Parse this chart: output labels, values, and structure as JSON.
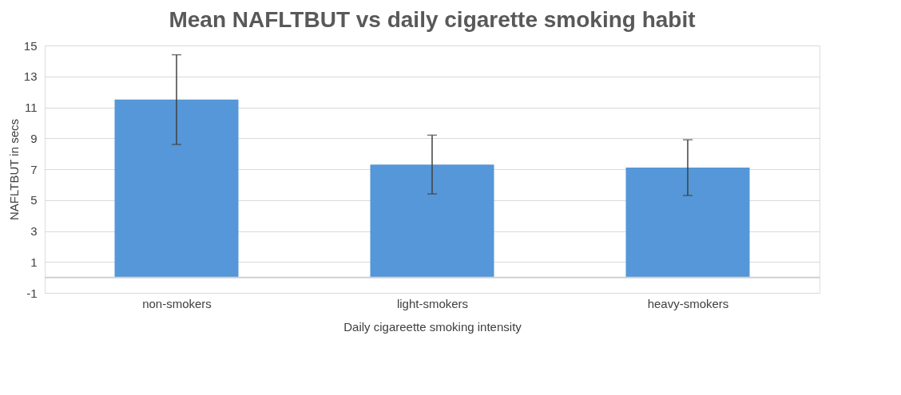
{
  "chart_data": {
    "type": "bar",
    "title": "Mean NAFLTBUT vs daily cigarette smoking habit",
    "xlabel": "Daily cigareette smoking intensity",
    "ylabel": "NAFLTBUT in secs",
    "categories": [
      "non-smokers",
      "light-smokers",
      "heavy-smokers"
    ],
    "values": [
      11.5,
      7.3,
      7.1
    ],
    "errors": [
      [
        8.6,
        14.4
      ],
      [
        5.4,
        9.2
      ],
      [
        5.3,
        8.9
      ]
    ],
    "color": "#5597d8",
    "ylim": [
      -1,
      15
    ],
    "yticks": [
      -1,
      1,
      3,
      5,
      7,
      9,
      11,
      13,
      15
    ],
    "grid": "y"
  }
}
